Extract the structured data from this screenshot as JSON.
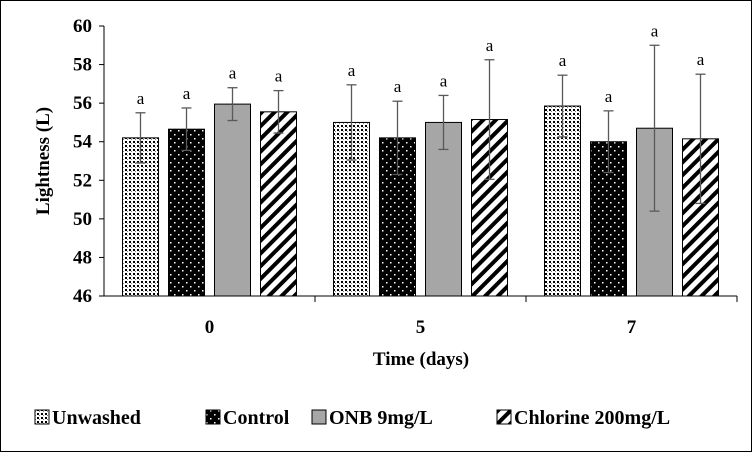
{
  "chart_data": {
    "type": "bar",
    "title": "",
    "xlabel": "Time (days)",
    "ylabel": "Lightness (L)",
    "ylim": [
      46,
      60
    ],
    "yticks": [
      46,
      48,
      50,
      52,
      54,
      56,
      58,
      60
    ],
    "categories": [
      "0",
      "5",
      "7"
    ],
    "series": [
      {
        "name": "Unwashed",
        "pattern": "dots-grid",
        "values": [
          54.2,
          55.0,
          55.85
        ],
        "errors": [
          1.3,
          1.95,
          1.6
        ],
        "labels": [
          "a",
          "a",
          "a"
        ]
      },
      {
        "name": "Control",
        "pattern": "dots-sparse",
        "values": [
          54.65,
          54.2,
          54.0
        ],
        "errors": [
          1.1,
          1.9,
          1.6
        ],
        "labels": [
          "a",
          "a",
          "a"
        ]
      },
      {
        "name": "ONB 9mg/L",
        "pattern": "solid-gray",
        "values": [
          55.95,
          55.0,
          54.7
        ],
        "errors": [
          0.85,
          1.4,
          4.3
        ],
        "labels": [
          "a",
          "a",
          "a"
        ]
      },
      {
        "name": "Chlorine 200mg/L",
        "pattern": "diagonal-stripes",
        "values": [
          55.55,
          55.15,
          54.15
        ],
        "errors": [
          1.1,
          3.1,
          3.35
        ],
        "labels": [
          "a",
          "a",
          "a"
        ]
      }
    ],
    "grid": false,
    "legend_position": "bottom",
    "colors": {
      "axis": "#000000",
      "gray_fill": "#a6a6a6",
      "error_bar": "#595959"
    }
  }
}
